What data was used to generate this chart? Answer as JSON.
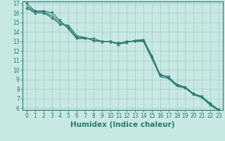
{
  "xlabel": "Humidex (Indice chaleur)",
  "ylabel": "",
  "bg_color": "#c8e8e4",
  "grid_color": "#a8d0cc",
  "line_color": "#2a7a72",
  "axis_color": "#2a7a72",
  "x_data": [
    0,
    1,
    2,
    3,
    4,
    5,
    6,
    7,
    8,
    9,
    10,
    11,
    12,
    13,
    14,
    15,
    16,
    17,
    18,
    19,
    20,
    21,
    22,
    23
  ],
  "line1": [
    17.0,
    16.2,
    16.2,
    16.0,
    15.2,
    14.3,
    13.3,
    13.3,
    13.3,
    13.0,
    13.0,
    12.8,
    13.0,
    13.0,
    13.0,
    11.2,
    9.5,
    9.3,
    8.4,
    8.2,
    7.5,
    7.2,
    6.5,
    5.8
  ],
  "line2": [
    16.7,
    16.1,
    16.1,
    15.7,
    15.0,
    14.5,
    13.4,
    13.4,
    13.1,
    13.0,
    13.0,
    12.7,
    12.9,
    13.1,
    13.1,
    11.3,
    9.3,
    9.1,
    8.3,
    8.1,
    7.4,
    7.1,
    6.3,
    5.75
  ],
  "line3": [
    16.5,
    16.0,
    16.0,
    15.5,
    14.8,
    14.7,
    13.6,
    13.4,
    13.1,
    13.0,
    13.0,
    12.7,
    12.9,
    13.1,
    13.2,
    11.5,
    9.5,
    9.2,
    8.5,
    8.2,
    7.5,
    7.2,
    6.4,
    5.85
  ],
  "ylim": [
    6,
    17
  ],
  "xlim": [
    -0.5,
    23.5
  ],
  "yticks": [
    6,
    7,
    8,
    9,
    10,
    11,
    12,
    13,
    14,
    15,
    16,
    17
  ],
  "xticks": [
    0,
    1,
    2,
    3,
    4,
    5,
    6,
    7,
    8,
    9,
    10,
    11,
    12,
    13,
    14,
    15,
    16,
    17,
    18,
    19,
    20,
    21,
    22,
    23
  ],
  "tick_fontsize": 5.5,
  "xlabel_fontsize": 7.5,
  "marker_size": 3
}
